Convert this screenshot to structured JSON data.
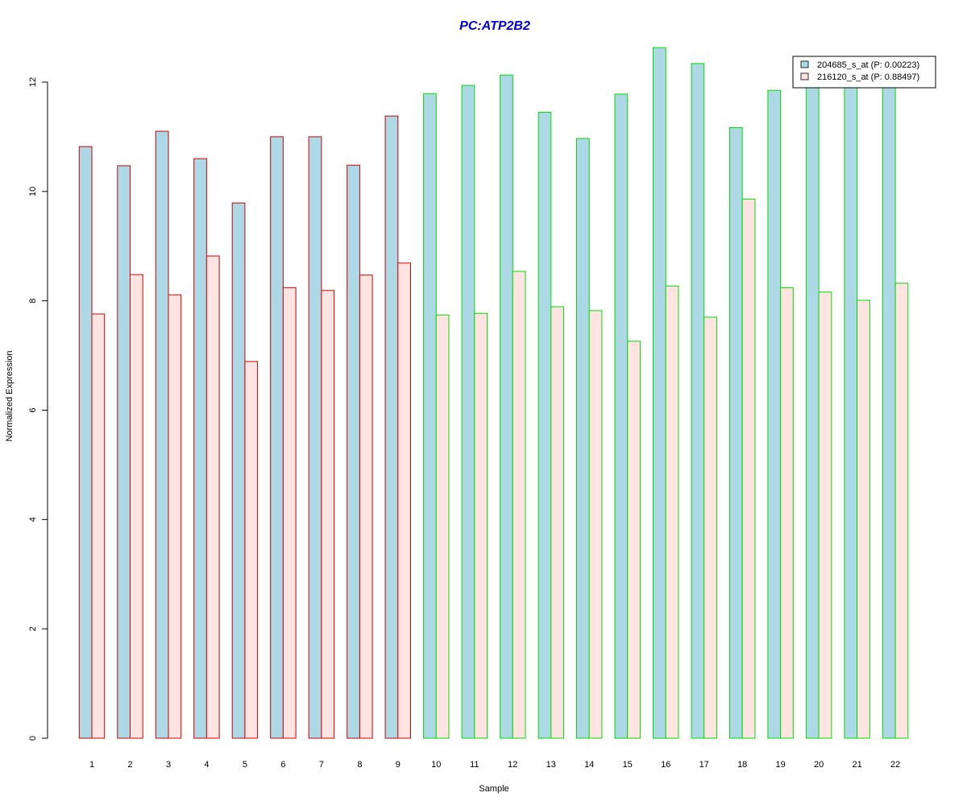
{
  "chart_data": {
    "type": "bar",
    "title": "PC:ATP2B2",
    "xlabel": "Sample",
    "ylabel": "Normalized Expression",
    "ylim": [
      0,
      12.6
    ],
    "yticks": [
      0,
      2,
      4,
      6,
      8,
      10,
      12
    ],
    "categories": [
      "1",
      "2",
      "3",
      "4",
      "5",
      "6",
      "7",
      "8",
      "9",
      "10",
      "11",
      "12",
      "13",
      "14",
      "15",
      "16",
      "17",
      "18",
      "19",
      "20",
      "21",
      "22"
    ],
    "groups": [
      "red",
      "red",
      "red",
      "red",
      "red",
      "red",
      "red",
      "red",
      "red",
      "green",
      "green",
      "green",
      "green",
      "green",
      "green",
      "green",
      "green",
      "green",
      "green",
      "green",
      "green",
      "green"
    ],
    "series": [
      {
        "name": "204685_s_at (P: 0.00223)",
        "fill": "#add8e6",
        "values": [
          10.82,
          10.47,
          11.1,
          10.6,
          9.79,
          11.0,
          11.0,
          10.48,
          11.38,
          11.79,
          11.94,
          12.13,
          11.45,
          10.97,
          11.78,
          12.63,
          12.34,
          11.17,
          11.85,
          12.1,
          12.0,
          12.1
        ]
      },
      {
        "name": "216120_s_at (P: 0.88497)",
        "fill": "#ffe4e1",
        "values": [
          7.76,
          8.48,
          8.11,
          8.82,
          6.89,
          8.24,
          8.19,
          8.47,
          8.69,
          7.74,
          7.77,
          8.54,
          7.89,
          7.82,
          7.26,
          8.27,
          7.7,
          9.86,
          8.24,
          8.16,
          8.01,
          8.32
        ]
      }
    ],
    "group_colors": {
      "red": "#d00000",
      "green": "#00dd00"
    },
    "legend": "top-right",
    "grid": false
  }
}
